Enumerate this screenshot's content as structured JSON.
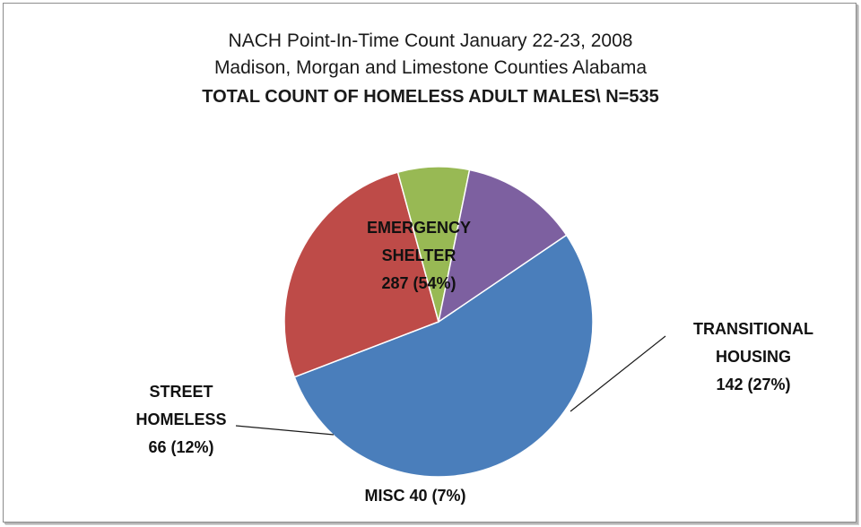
{
  "chart_data": {
    "type": "pie",
    "title": "NACH Point-In-Time  Count January 22-23, 2008",
    "subtitle": "Madison, Morgan and Limestone Counties Alabama",
    "subtitle2": "TOTAL COUNT OF HOMELESS  ADULT MALES\\ N=535",
    "total": 535,
    "slices": [
      {
        "key": "emergency",
        "value": 287,
        "percent": 54,
        "color": "#4a7ebb",
        "label_lines": [
          "EMERGENCY",
          "SHELTER",
          "287 (54%)"
        ]
      },
      {
        "key": "transitional",
        "value": 142,
        "percent": 27,
        "color": "#be4b48",
        "label_lines": [
          "TRANSITIONAL",
          "HOUSING",
          "142 (27%)"
        ]
      },
      {
        "key": "misc",
        "value": 40,
        "percent": 7,
        "color": "#98b954",
        "label_lines": [
          "MISC 40 (7%)"
        ]
      },
      {
        "key": "street",
        "value": 66,
        "percent": 12,
        "color": "#7d60a0",
        "label_lines": [
          "STREET",
          "HOMELESS",
          "66 (12%)"
        ]
      }
    ],
    "legend": "none"
  }
}
